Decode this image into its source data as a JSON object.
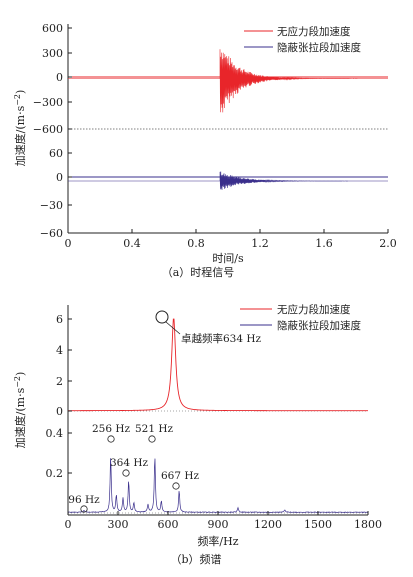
{
  "colors": {
    "red": "#e8252a",
    "blue": "#3a2f8c",
    "axis": "#222222",
    "lightred": "#e98a8c",
    "lightblue": "#9a94c4"
  },
  "panel_a": {
    "caption": "（a）时程信号",
    "ylabel": "加速度/(m·s",
    "ylabel_sup": "−2",
    "ylabel_close": ")",
    "xlabel": "时间/s",
    "yticks_top": [
      "600",
      "300",
      "0",
      "−300",
      "−600"
    ],
    "yticks_bottom": [
      "60",
      "30",
      "0",
      "−30",
      "−60"
    ],
    "xticks": [
      "0",
      "0.4",
      "0.8",
      "1.2",
      "1.6",
      "2.0"
    ],
    "legend": [
      "无应力段加速度",
      "隐蔽张拉段加速度"
    ]
  },
  "panel_b": {
    "caption": "（b）频谱",
    "ylabel": "加速度/(m·s",
    "ylabel_sup": "−2",
    "ylabel_close": ")",
    "xlabel": "频率/Hz",
    "yticks_top": [
      "6",
      "4",
      "2",
      "0"
    ],
    "yticks_bottom": [
      "0.4",
      "0.2"
    ],
    "xticks": [
      "0",
      "300",
      "600",
      "900",
      "1200",
      "1500",
      "1800"
    ],
    "legend": [
      "无应力段加速度",
      "隐蔽张拉段加速度"
    ],
    "annotation_top": "卓越频率634 Hz",
    "peak_labels": [
      "96 Hz",
      "256 Hz",
      "364 Hz",
      "521 Hz",
      "667 Hz"
    ]
  },
  "chart_data": [
    {
      "type": "line",
      "title": "（a）时程信号",
      "xlabel": "时间/s",
      "ylabel": "加速度/(m·s−2)",
      "xlim": [
        0,
        2.0
      ],
      "subplots": [
        {
          "name": "无应力段加速度",
          "ylim": [
            -600,
            600
          ],
          "onset": 0.95,
          "peak": 450,
          "min": -500,
          "decay_end": 1.3
        },
        {
          "name": "隐蔽张拉段加速度",
          "ylim": [
            -60,
            60
          ],
          "onset": 0.95,
          "peak": 12,
          "min": -12,
          "decay_end": 1.35
        }
      ]
    },
    {
      "type": "line",
      "title": "（b）频谱",
      "xlabel": "频率/Hz",
      "ylabel": "加速度/(m·s−2)",
      "xlim": [
        0,
        1800
      ],
      "series": [
        {
          "name": "无应力段加速度",
          "ylim": [
            0,
            6
          ],
          "peaks": [
            {
              "x": 634,
              "y": 6.1
            }
          ]
        },
        {
          "name": "隐蔽张拉段加速度",
          "ylim": [
            0,
            0.45
          ],
          "peaks": [
            {
              "x": 96,
              "y": 0.01
            },
            {
              "x": 256,
              "y": 0.36
            },
            {
              "x": 364,
              "y": 0.2
            },
            {
              "x": 521,
              "y": 0.36
            },
            {
              "x": 667,
              "y": 0.14
            }
          ]
        }
      ]
    }
  ]
}
